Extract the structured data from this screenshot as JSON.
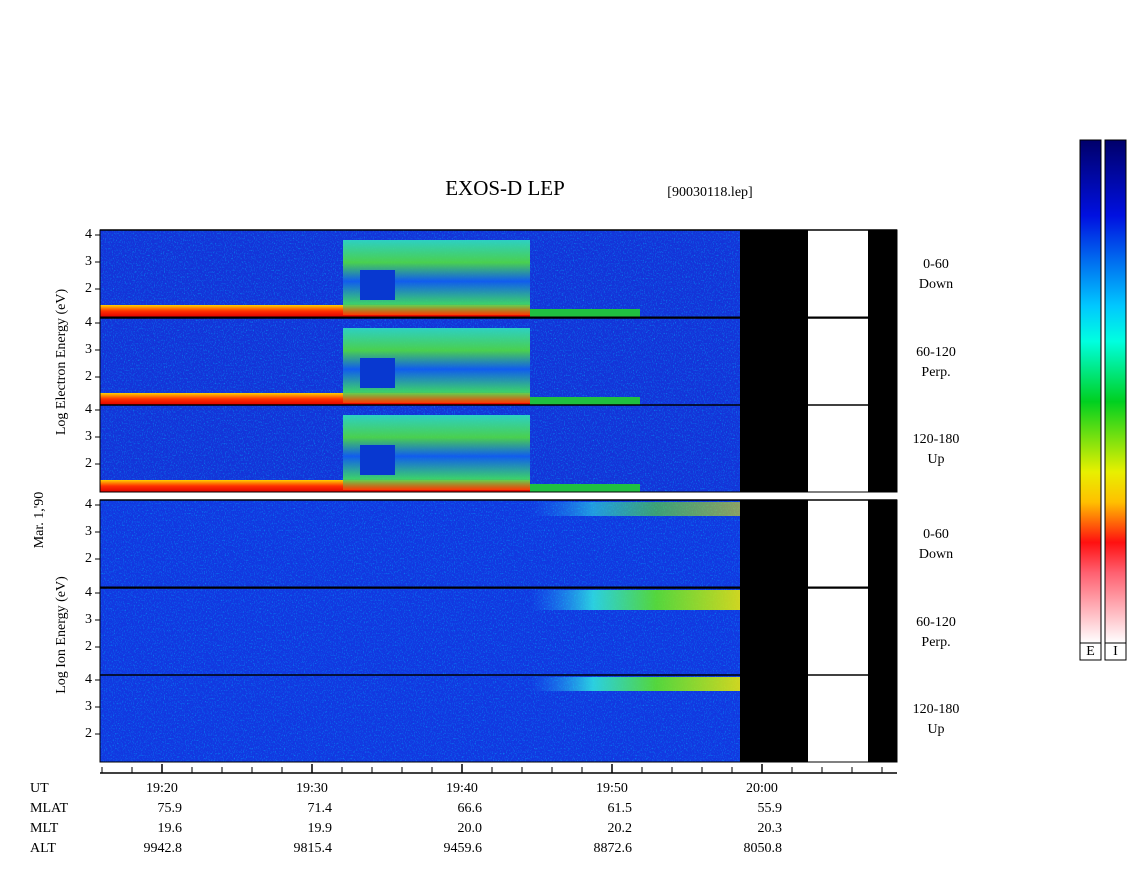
{
  "title": "EXOS-D LEP",
  "file": "[90030118.lep]",
  "y_labels": {
    "electron": "Log Electron Energy (eV)",
    "date": "Mar. 1,'90",
    "ion": "Log Ion Energy (eV)"
  },
  "panels": [
    {
      "line1": "0-60",
      "line2": "Down"
    },
    {
      "line1": "60-120",
      "line2": "Perp."
    },
    {
      "line1": "120-180",
      "line2": "Up"
    },
    {
      "line1": "0-60",
      "line2": "Down"
    },
    {
      "line1": "60-120",
      "line2": "Perp."
    },
    {
      "line1": "120-180",
      "line2": "Up"
    }
  ],
  "energy_ticks": [
    "4",
    "3",
    "2"
  ],
  "table": {
    "rows": [
      {
        "label": "UT",
        "cells": [
          "19:20",
          "19:30",
          "19:40",
          "19:50",
          "20:00"
        ]
      },
      {
        "label": "MLAT",
        "cells": [
          "75.9",
          "71.4",
          "66.6",
          "61.5",
          "55.9"
        ]
      },
      {
        "label": "MLT",
        "cells": [
          "19.6",
          "19.9",
          "20.0",
          "20.2",
          "20.3"
        ]
      },
      {
        "label": "ALT",
        "cells": [
          "9942.8",
          "9815.4",
          "9459.6",
          "8872.6",
          "8050.8"
        ]
      }
    ]
  },
  "colorbar": [
    "E",
    "I"
  ]
}
